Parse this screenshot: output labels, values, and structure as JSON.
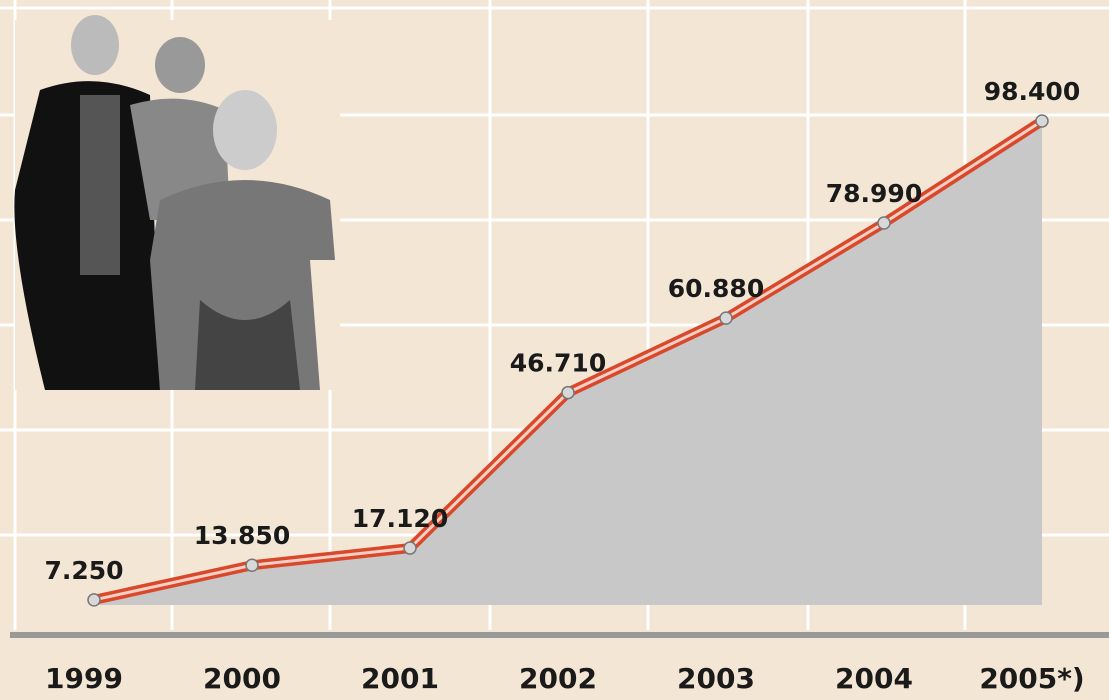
{
  "chart_data": {
    "type": "line",
    "categories": [
      "1999",
      "2000",
      "2001",
      "2002",
      "2003",
      "2004",
      "2005*)"
    ],
    "values": [
      7250,
      13850,
      17120,
      46710,
      60880,
      78990,
      98400
    ],
    "value_labels": [
      "7.250",
      "13.850",
      "17.120",
      "46.710",
      "60.880",
      "78.990",
      "98.400"
    ],
    "color": "#d9482b"
  }
}
